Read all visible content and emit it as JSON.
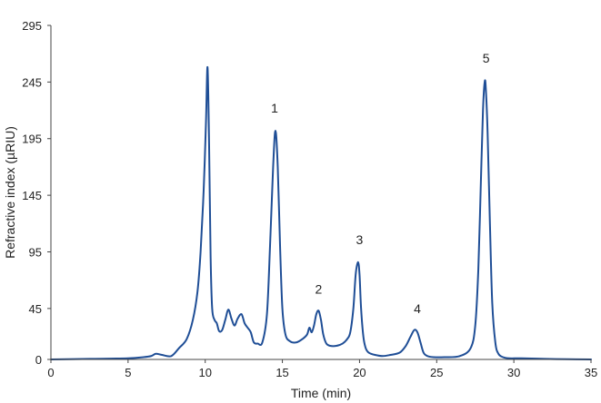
{
  "chart_data": {
    "type": "line",
    "title": "",
    "xlabel": "Time (min)",
    "ylabel": "Refractive index (µRIU)",
    "xlim": [
      0,
      35
    ],
    "ylim": [
      0,
      295
    ],
    "xticks": [
      "0",
      "5",
      "10",
      "15",
      "20",
      "25",
      "30",
      "35"
    ],
    "yticks": [
      "0",
      "45",
      "95",
      "145",
      "195",
      "245",
      "295"
    ],
    "grid": false,
    "legend": "none",
    "line_color": "#1f4e96",
    "series": [
      {
        "x": [
          0,
          2.5,
          5,
          6,
          6.5,
          6.8,
          7.2,
          7.8,
          8.3,
          8.8,
          9.2,
          9.5,
          9.7,
          9.9,
          10.05,
          10.15,
          10.25,
          10.35,
          10.45,
          10.6,
          10.75,
          10.9,
          11.1,
          11.3,
          11.5,
          11.7,
          11.9,
          12.1,
          12.35,
          12.55,
          12.75,
          12.95,
          13.15,
          13.4,
          13.7,
          14.0,
          14.2,
          14.4,
          14.55,
          14.7,
          14.85,
          15.0,
          15.2,
          15.5,
          15.9,
          16.3,
          16.6,
          16.75,
          16.9,
          17.05,
          17.2,
          17.35,
          17.5,
          17.65,
          17.85,
          18.1,
          18.5,
          18.9,
          19.2,
          19.4,
          19.6,
          19.75,
          19.9,
          20.0,
          20.1,
          20.25,
          20.4,
          20.6,
          21.0,
          21.5,
          22.0,
          22.6,
          23.0,
          23.3,
          23.55,
          23.75,
          23.95,
          24.15,
          24.4,
          24.8,
          25.5,
          26.5,
          27.2,
          27.5,
          27.7,
          27.85,
          28.0,
          28.12,
          28.2,
          28.3,
          28.45,
          28.6,
          28.8,
          29.0,
          29.3,
          29.7,
          30.5,
          32,
          33.5,
          35
        ],
        "y": [
          0,
          0.5,
          1,
          2,
          3,
          5,
          4,
          3,
          10,
          18,
          35,
          60,
          95,
          150,
          210,
          258,
          190,
          90,
          45,
          35,
          32,
          25,
          26,
          35,
          44,
          36,
          30,
          36,
          40,
          32,
          28,
          24,
          15,
          14,
          15,
          40,
          100,
          170,
          202,
          170,
          100,
          45,
          22,
          16,
          15,
          18,
          22,
          28,
          24,
          30,
          40,
          43,
          35,
          22,
          14,
          12,
          12,
          14,
          18,
          24,
          45,
          75,
          86,
          75,
          45,
          20,
          10,
          6,
          4,
          3,
          4,
          6,
          12,
          20,
          26,
          24,
          15,
          6,
          3,
          2,
          2,
          3,
          10,
          30,
          80,
          150,
          220,
          246,
          235,
          200,
          120,
          50,
          15,
          5,
          2,
          1,
          1,
          0.5,
          0.2,
          0
        ]
      }
    ],
    "annotations": [
      {
        "text": "1",
        "x": 14.5,
        "y": 218
      },
      {
        "text": "2",
        "x": 17.35,
        "y": 58
      },
      {
        "text": "3",
        "x": 20.0,
        "y": 102
      },
      {
        "text": "4",
        "x": 23.75,
        "y": 41
      },
      {
        "text": "5",
        "x": 28.2,
        "y": 262
      }
    ]
  }
}
